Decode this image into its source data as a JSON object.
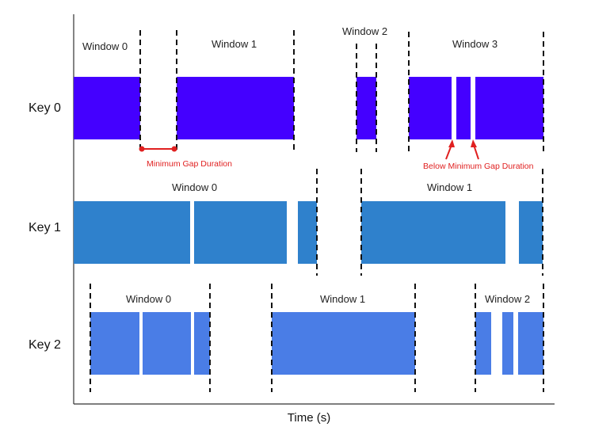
{
  "x_axis_label": "Time (s)",
  "colors": {
    "key_0": "#4400ff",
    "key_1": "#2f81cc",
    "key_2": "#4a7de6",
    "annotation": "#e02020",
    "boundary": "#111111"
  },
  "rows": [
    {
      "key_label": "Key 0",
      "windows": [
        {
          "label": "Window 0"
        },
        {
          "label": "Window 1"
        },
        {
          "label": "Window 2"
        },
        {
          "label": "Window 3"
        }
      ]
    },
    {
      "key_label": "Key 1",
      "windows": [
        {
          "label": "Window 0"
        },
        {
          "label": "Window 1"
        }
      ]
    },
    {
      "key_label": "Key 2",
      "windows": [
        {
          "label": "Window 0"
        },
        {
          "label": "Window 1"
        },
        {
          "label": "Window 2"
        }
      ]
    }
  ],
  "annotations": {
    "minimum_gap": "Minimum Gap Duration",
    "below_minimum_gap": "Below Minimum Gap Duration"
  }
}
